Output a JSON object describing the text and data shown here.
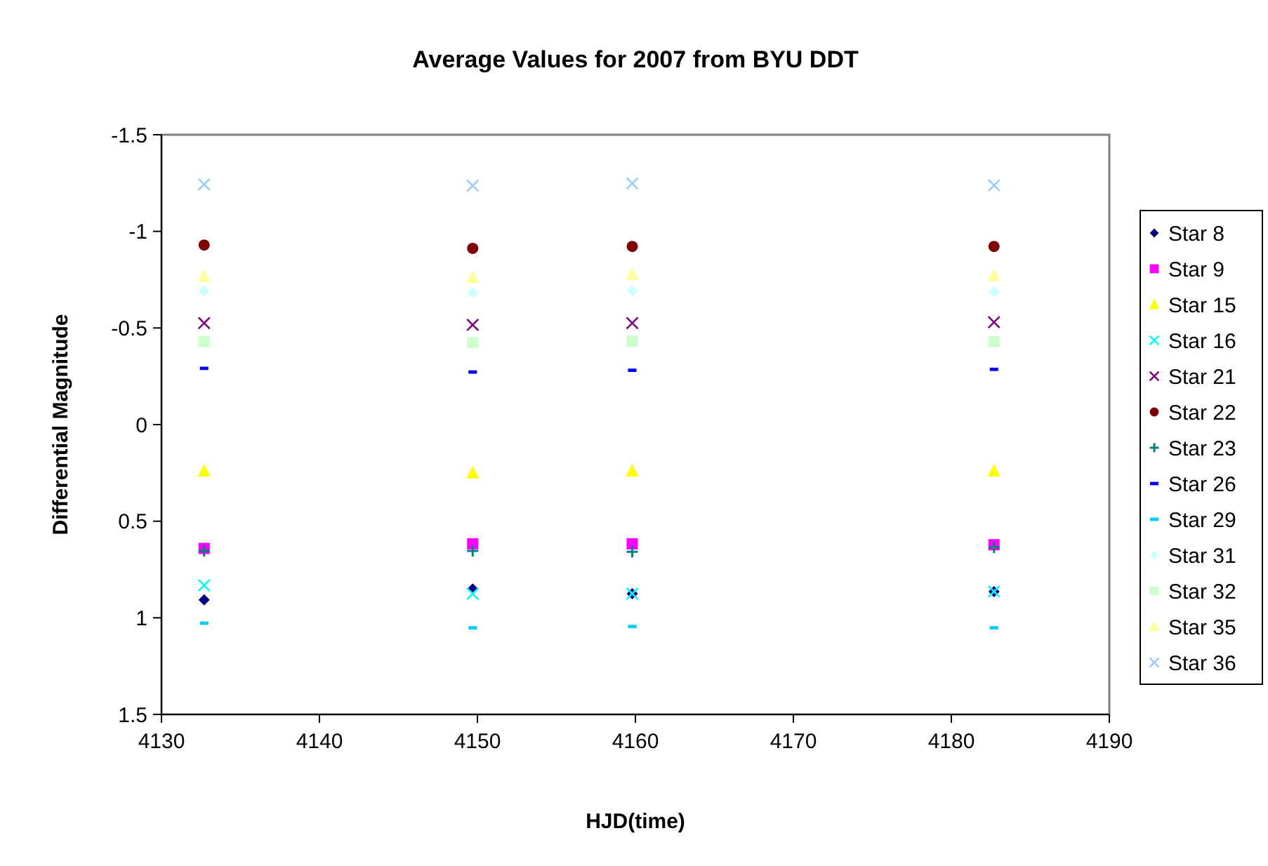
{
  "chart_data": {
    "type": "scatter",
    "title": "Average Values for 2007 from BYU DDT",
    "xlabel": "HJD(time)",
    "ylabel": "Differential Magnitude",
    "x": [
      4132.7,
      4149.7,
      4159.8,
      4182.7
    ],
    "xlim": [
      4130,
      4190
    ],
    "xticks": [
      4130,
      4140,
      4150,
      4160,
      4170,
      4180,
      4190
    ],
    "ylim": [
      1.5,
      -1.5
    ],
    "yticks": [
      -1.5,
      -1,
      -0.5,
      0,
      0.5,
      1,
      1.5
    ],
    "legend": "right",
    "grid": false,
    "series": [
      {
        "name": "Star 8",
        "color": "#000080",
        "marker": "diamond",
        "values": [
          0.907,
          0.851,
          0.875,
          0.864
        ]
      },
      {
        "name": "Star 9",
        "color": "#ff00ff",
        "marker": "square",
        "values": [
          0.641,
          0.617,
          0.617,
          0.622
        ]
      },
      {
        "name": "Star 15",
        "color": "#ffff00",
        "marker": "triangle",
        "values": [
          0.24,
          0.25,
          0.24,
          0.24
        ]
      },
      {
        "name": "Star 16",
        "color": "#00ffff",
        "marker": "cross",
        "values": [
          0.832,
          0.876,
          0.875,
          0.864
        ]
      },
      {
        "name": "Star 21",
        "color": "#800080",
        "marker": "cross",
        "values": [
          -0.525,
          -0.516,
          -0.525,
          -0.53
        ]
      },
      {
        "name": "Star 22",
        "color": "#800000",
        "marker": "circle",
        "values": [
          -0.929,
          -0.912,
          -0.922,
          -0.922
        ]
      },
      {
        "name": "Star 23",
        "color": "#008080",
        "marker": "plus",
        "values": [
          0.654,
          0.654,
          0.658,
          0.636
        ]
      },
      {
        "name": "Star 26",
        "color": "#0000ff",
        "values": [
          -0.291,
          -0.272,
          -0.281,
          -0.286
        ]
      },
      {
        "name": "Star 29",
        "color": "#00ccff",
        "values": [
          1.028,
          1.052,
          1.045,
          1.052
        ]
      },
      {
        "name": "Star 31",
        "color": "#ccffff",
        "marker": "diamond",
        "values": [
          -0.692,
          -0.682,
          -0.692,
          -0.687
        ]
      },
      {
        "name": "Star 32",
        "color": "#ccffcc",
        "marker": "square",
        "values": [
          -0.429,
          -0.424,
          -0.431,
          -0.429
        ]
      },
      {
        "name": "Star 35",
        "color": "#ffff99",
        "marker": "triangle",
        "values": [
          -0.767,
          -0.762,
          -0.777,
          -0.772
        ]
      },
      {
        "name": "Star 36",
        "color": "#99ccff",
        "marker": "cross",
        "values": [
          -1.243,
          -1.236,
          -1.248,
          -1.238
        ]
      }
    ]
  }
}
